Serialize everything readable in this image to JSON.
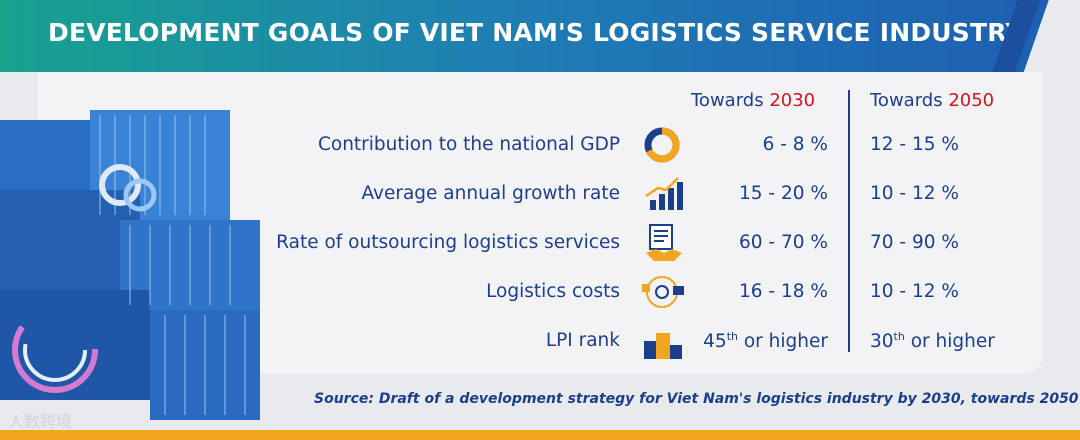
{
  "title": "DEVELOPMENT GOALS OF VIET NAM'S LOGISTICS SERVICE INDUSTRY",
  "columns": [
    {
      "prefix": "Towards ",
      "year": "2030"
    },
    {
      "prefix": "Towards ",
      "year": "2050"
    }
  ],
  "rows": [
    {
      "label": "Contribution to the national GDP",
      "icon": "donut-chart-icon",
      "v2030": "6 - 8 %",
      "v2050": "12 - 15 %"
    },
    {
      "label": "Average annual growth rate",
      "icon": "growth-bars-icon",
      "v2030": "15 - 20 %",
      "v2050": "10 - 12 %"
    },
    {
      "label": "Rate of outsourcing logistics services",
      "icon": "contract-handshake-icon",
      "v2030": "60 - 70 %",
      "v2050": "70 - 90 %"
    },
    {
      "label": "Logistics costs",
      "icon": "cost-truck-icon",
      "v2030": "16 - 18 %",
      "v2050": "10 - 12 %"
    },
    {
      "label": "LPI rank",
      "icon": "podium-icon",
      "v2030_num": "45",
      "v2030_sup": "th",
      "v2030_rest": " or higher",
      "v2050_num": "30",
      "v2050_sup": "th",
      "v2050_rest": " or higher"
    }
  ],
  "source": "Source: Draft of a development strategy for Viet Nam's logistics industry by 2030, towards 2050",
  "watermark": "人数跨境",
  "colors": {
    "accent_blue": "#1c3f8c",
    "year_red": "#d7141f",
    "orange": "#f2a51f",
    "header_teal": "#17a28e",
    "header_blue": "#1e5db2"
  }
}
